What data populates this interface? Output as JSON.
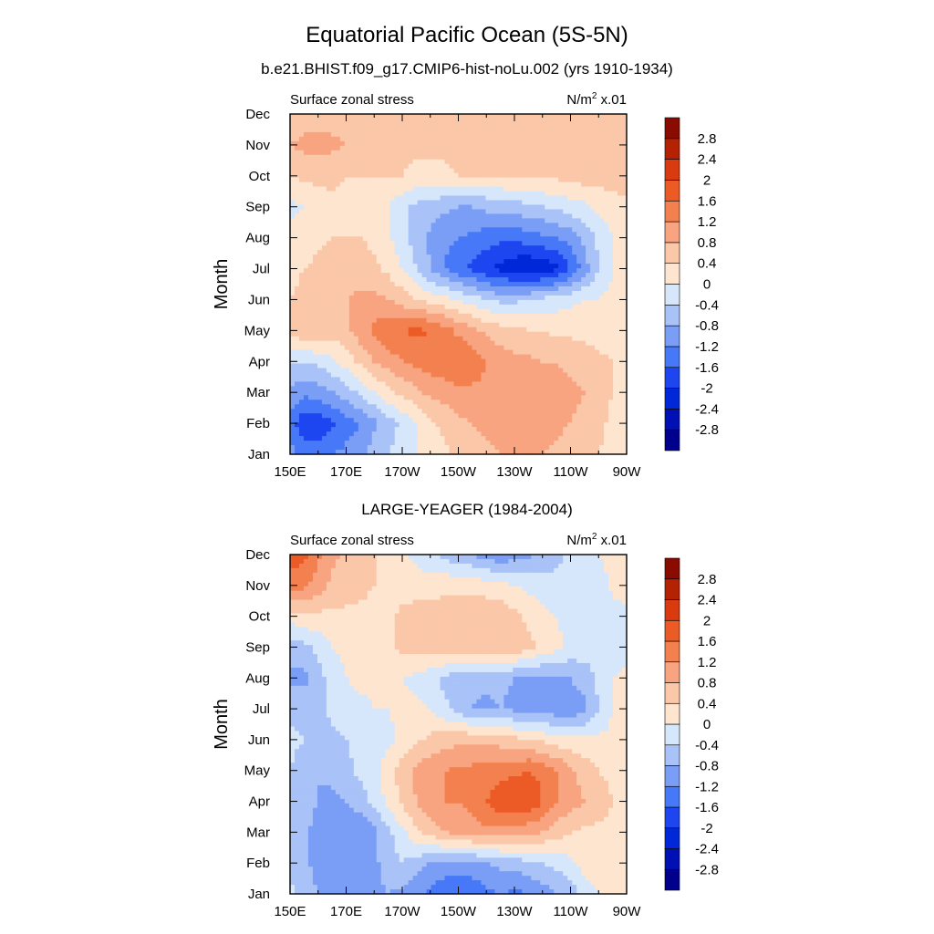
{
  "page": {
    "title": "Equatorial Pacific Ocean (5S-5N)"
  },
  "chart_data": [
    {
      "type": "heatmap",
      "title": "b.e21.BHIST.f09_g17.CMIP6-hist-noLu.002 (yrs 1910-1934)",
      "left_label": "Surface zonal stress",
      "units_base": "N/m",
      "units_sup": "2",
      "units_scale": " x.01",
      "ylabel": "Month",
      "x_ticks": [
        "150E",
        "170E",
        "170W",
        "150W",
        "130W",
        "110W",
        "90W"
      ],
      "y_ticks": [
        "Jan",
        "Feb",
        "Mar",
        "Apr",
        "May",
        "Jun",
        "Jul",
        "Aug",
        "Sep",
        "Oct",
        "Nov",
        "Dec"
      ],
      "x": [
        150,
        155,
        160,
        165,
        170,
        175,
        180,
        185,
        190,
        195,
        200,
        205,
        210,
        215,
        220,
        225,
        230,
        235,
        240,
        245,
        250,
        255,
        260,
        265,
        270
      ],
      "y": [
        1,
        2,
        3,
        4,
        5,
        6,
        7,
        8,
        9,
        10,
        11,
        12
      ],
      "z": [
        [
          -1.0,
          -1.4,
          -1.4,
          -1.2,
          -1.1,
          -0.9,
          -0.6,
          -0.4,
          -0.2,
          0.0,
          0.2,
          0.3,
          0.5,
          0.6,
          0.7,
          0.8,
          0.8,
          0.8,
          0.8,
          0.7,
          0.6,
          0.5,
          0.4,
          0.3,
          0.2
        ],
        [
          -1.4,
          -1.9,
          -1.9,
          -1.7,
          -1.4,
          -1.2,
          -0.9,
          -0.6,
          -0.3,
          0.0,
          0.3,
          0.5,
          0.7,
          0.8,
          0.9,
          1.0,
          1.0,
          1.0,
          1.0,
          0.9,
          0.8,
          0.7,
          0.5,
          0.3,
          0.2
        ],
        [
          -0.9,
          -1.1,
          -1.0,
          -0.8,
          -0.6,
          -0.3,
          0.0,
          0.3,
          0.5,
          0.7,
          0.9,
          1.0,
          1.1,
          1.1,
          1.1,
          1.1,
          1.1,
          1.1,
          1.0,
          1.0,
          0.9,
          0.8,
          0.6,
          0.4,
          0.2
        ],
        [
          -0.3,
          -0.4,
          -0.3,
          -0.1,
          0.2,
          0.5,
          0.8,
          1.0,
          1.2,
          1.3,
          1.4,
          1.5,
          1.6,
          1.5,
          1.2,
          1.0,
          0.9,
          0.9,
          0.8,
          0.8,
          0.7,
          0.6,
          0.5,
          0.4,
          0.3
        ],
        [
          0.5,
          0.8,
          0.8,
          0.6,
          0.7,
          1.0,
          1.3,
          1.5,
          1.6,
          1.7,
          1.6,
          1.4,
          1.1,
          0.9,
          0.7,
          0.6,
          0.5,
          0.4,
          0.4,
          0.3,
          0.3,
          0.3,
          0.2,
          0.2,
          0.2
        ],
        [
          0.4,
          0.5,
          0.6,
          0.7,
          0.8,
          0.9,
          0.9,
          0.8,
          0.6,
          0.4,
          0.2,
          0.1,
          0.0,
          -0.2,
          -0.4,
          -0.5,
          -0.5,
          -0.4,
          -0.3,
          -0.2,
          -0.1,
          0.0,
          0.0,
          0.1,
          0.1
        ],
        [
          0.3,
          0.4,
          0.5,
          0.6,
          0.6,
          0.6,
          0.5,
          0.3,
          0.0,
          -0.4,
          -0.8,
          -1.2,
          -1.5,
          -1.7,
          -1.9,
          -2.1,
          -2.3,
          -2.4,
          -2.3,
          -2.1,
          -1.6,
          -1.0,
          -0.4,
          0.0,
          0.1
        ],
        [
          0.1,
          0.2,
          0.3,
          0.4,
          0.4,
          0.4,
          0.3,
          0.1,
          -0.3,
          -0.6,
          -0.9,
          -1.1,
          -1.2,
          -1.3,
          -1.4,
          -1.5,
          -1.5,
          -1.4,
          -1.3,
          -1.2,
          -1.0,
          -0.7,
          -0.3,
          0.0,
          0.1
        ],
        [
          -0.1,
          0.0,
          0.2,
          0.3,
          0.3,
          0.3,
          0.2,
          0.0,
          -0.3,
          -0.5,
          -0.6,
          -0.7,
          -0.8,
          -0.8,
          -0.7,
          -0.6,
          -0.6,
          -0.5,
          -0.4,
          -0.3,
          -0.2,
          -0.1,
          0.1,
          0.2,
          0.3
        ],
        [
          0.4,
          0.5,
          0.5,
          0.5,
          0.4,
          0.4,
          0.4,
          0.4,
          0.4,
          0.3,
          0.3,
          0.3,
          0.4,
          0.4,
          0.4,
          0.4,
          0.5,
          0.5,
          0.5,
          0.5,
          0.6,
          0.6,
          0.6,
          0.6,
          0.6
        ],
        [
          0.8,
          0.9,
          1.0,
          0.9,
          0.8,
          0.7,
          0.6,
          0.6,
          0.5,
          0.5,
          0.5,
          0.5,
          0.6,
          0.6,
          0.6,
          0.6,
          0.7,
          0.7,
          0.7,
          0.7,
          0.7,
          0.7,
          0.7,
          0.7,
          0.6
        ],
        [
          0.5,
          0.6,
          0.6,
          0.6,
          0.5,
          0.5,
          0.4,
          0.4,
          0.4,
          0.4,
          0.4,
          0.4,
          0.5,
          0.5,
          0.5,
          0.5,
          0.5,
          0.6,
          0.6,
          0.6,
          0.6,
          0.6,
          0.6,
          0.5,
          0.5
        ]
      ],
      "levels": [
        -2.8,
        -2.4,
        -2,
        -1.6,
        -1.2,
        -0.8,
        -0.4,
        0,
        0.4,
        0.8,
        1.2,
        1.6,
        2,
        2.4,
        2.8
      ],
      "level_labels": [
        "-2.8",
        "-2.4",
        "-2",
        "-1.6",
        "-1.2",
        "-0.8",
        "-0.4",
        "0",
        "0.4",
        "0.8",
        "1.2",
        "1.6",
        "2",
        "2.4",
        "2.8"
      ],
      "colors": [
        "#00008c",
        "#0010b4",
        "#0028d8",
        "#1e46f0",
        "#4678f8",
        "#7a9ef5",
        "#a9c2f7",
        "#d6e6fb",
        "#fde5d0",
        "#fbc7a9",
        "#f8a480",
        "#f3814f",
        "#ec5a26",
        "#d93a0f",
        "#b42203",
        "#8a0b00"
      ]
    },
    {
      "type": "heatmap",
      "title": "LARGE-YEAGER (1984-2004)",
      "left_label": "Surface zonal stress",
      "units_base": "N/m",
      "units_sup": "2",
      "units_scale": " x.01",
      "ylabel": "Month",
      "x_ticks": [
        "150E",
        "170E",
        "170W",
        "150W",
        "130W",
        "110W",
        "90W"
      ],
      "y_ticks": [
        "Jan",
        "Feb",
        "Mar",
        "Apr",
        "May",
        "Jun",
        "Jul",
        "Aug",
        "Sep",
        "Oct",
        "Nov",
        "Dec"
      ],
      "x": [
        150,
        155,
        160,
        165,
        170,
        175,
        180,
        185,
        190,
        195,
        200,
        205,
        210,
        215,
        220,
        225,
        230,
        235,
        240,
        245,
        250,
        255,
        260,
        265,
        270
      ],
      "y": [
        1,
        2,
        3,
        4,
        5,
        6,
        7,
        8,
        9,
        10,
        11,
        12
      ],
      "z": [
        [
          -0.3,
          -0.5,
          -0.8,
          -1.0,
          -1.0,
          -0.9,
          -0.9,
          -0.8,
          -0.9,
          -1.1,
          -1.3,
          -1.5,
          -1.6,
          -1.5,
          -1.3,
          -1.2,
          -1.3,
          -1.2,
          -1.0,
          -0.8,
          -0.6,
          -0.3,
          0.0,
          0.1,
          0.2
        ],
        [
          -0.5,
          -0.7,
          -1.0,
          -1.1,
          -1.1,
          -1.0,
          -0.9,
          -0.6,
          -0.4,
          -0.6,
          -0.8,
          -0.9,
          -1.0,
          -0.9,
          -0.8,
          -0.7,
          -0.6,
          -0.5,
          -0.4,
          -0.3,
          -0.1,
          0.2,
          0.3,
          0.3,
          0.3
        ],
        [
          -0.5,
          -0.7,
          -1.0,
          -1.2,
          -1.2,
          -1.1,
          -0.9,
          -0.5,
          -0.1,
          0.3,
          0.6,
          0.8,
          0.9,
          1.0,
          1.1,
          1.1,
          1.0,
          0.9,
          0.8,
          0.6,
          0.4,
          0.3,
          0.3,
          0.3,
          0.2
        ],
        [
          -0.5,
          -0.6,
          -0.8,
          -0.9,
          -0.8,
          -0.6,
          -0.3,
          0.1,
          0.5,
          0.8,
          1.1,
          1.2,
          1.2,
          1.4,
          1.6,
          1.9,
          2.0,
          2.0,
          1.6,
          1.2,
          1.0,
          0.8,
          0.6,
          0.4,
          0.3
        ],
        [
          -0.4,
          -0.6,
          -0.8,
          -0.7,
          -0.5,
          -0.3,
          -0.1,
          0.2,
          0.6,
          0.9,
          1.1,
          1.2,
          1.3,
          1.3,
          1.4,
          1.4,
          1.5,
          1.6,
          1.5,
          1.2,
          0.9,
          0.6,
          0.4,
          0.3,
          0.2
        ],
        [
          -0.3,
          -0.4,
          -0.5,
          -0.5,
          -0.4,
          -0.3,
          -0.2,
          -0.1,
          0.1,
          0.3,
          0.5,
          0.6,
          0.7,
          0.7,
          0.7,
          0.6,
          0.5,
          0.4,
          0.3,
          0.2,
          0.1,
          0.1,
          0.1,
          0.1,
          0.1
        ],
        [
          -0.5,
          -0.6,
          -0.5,
          -0.3,
          -0.2,
          -0.1,
          0.0,
          0.0,
          0.1,
          0.1,
          0.0,
          -0.3,
          -0.6,
          -0.8,
          -0.9,
          -0.8,
          -0.9,
          -1.0,
          -1.0,
          -1.1,
          -1.1,
          -0.9,
          -0.4,
          0.0,
          0.1
        ],
        [
          -0.9,
          -0.9,
          -0.6,
          -0.2,
          0.0,
          0.1,
          0.1,
          0.0,
          0.0,
          -0.1,
          -0.3,
          -0.5,
          -0.6,
          -0.7,
          -0.7,
          -0.7,
          -0.8,
          -0.9,
          -0.9,
          -0.9,
          -0.8,
          -0.6,
          -0.3,
          0.0,
          0.1
        ],
        [
          -0.6,
          -0.5,
          -0.3,
          0.0,
          0.1,
          0.2,
          0.2,
          0.3,
          0.5,
          0.6,
          0.7,
          0.7,
          0.7,
          0.7,
          0.8,
          0.8,
          0.7,
          0.5,
          0.3,
          0.1,
          -0.1,
          -0.2,
          -0.3,
          -0.3,
          -0.2
        ],
        [
          0.2,
          0.3,
          0.3,
          0.3,
          0.3,
          0.3,
          0.3,
          0.3,
          0.5,
          0.6,
          0.6,
          0.6,
          0.6,
          0.7,
          0.7,
          0.7,
          0.5,
          0.3,
          0.1,
          0.0,
          -0.1,
          -0.2,
          -0.2,
          -0.2,
          -0.1
        ],
        [
          1.4,
          1.3,
          1.0,
          0.7,
          0.6,
          0.5,
          0.4,
          0.3,
          0.2,
          0.2,
          0.2,
          0.3,
          0.3,
          0.3,
          0.2,
          0.1,
          0.0,
          -0.1,
          -0.2,
          -0.3,
          -0.4,
          -0.3,
          -0.2,
          0.1,
          0.2
        ],
        [
          1.8,
          1.7,
          1.3,
          0.9,
          0.7,
          0.5,
          0.4,
          0.2,
          0.1,
          -0.1,
          -0.3,
          -0.5,
          -0.7,
          -0.8,
          -1.0,
          -1.1,
          -1.0,
          -0.9,
          -0.7,
          -0.5,
          -0.3,
          -0.2,
          0.0,
          0.1,
          0.2
        ]
      ],
      "levels": [
        -2.8,
        -2.4,
        -2,
        -1.6,
        -1.2,
        -0.8,
        -0.4,
        0,
        0.4,
        0.8,
        1.2,
        1.6,
        2,
        2.4,
        2.8
      ],
      "level_labels": [
        "-2.8",
        "-2.4",
        "-2",
        "-1.6",
        "-1.2",
        "-0.8",
        "-0.4",
        "0",
        "0.4",
        "0.8",
        "1.2",
        "1.6",
        "2",
        "2.4",
        "2.8"
      ],
      "colors": [
        "#00008c",
        "#0010b4",
        "#0028d8",
        "#1e46f0",
        "#4678f8",
        "#7a9ef5",
        "#a9c2f7",
        "#d6e6fb",
        "#fde5d0",
        "#fbc7a9",
        "#f8a480",
        "#f3814f",
        "#ec5a26",
        "#d93a0f",
        "#b42203",
        "#8a0b00"
      ]
    }
  ]
}
